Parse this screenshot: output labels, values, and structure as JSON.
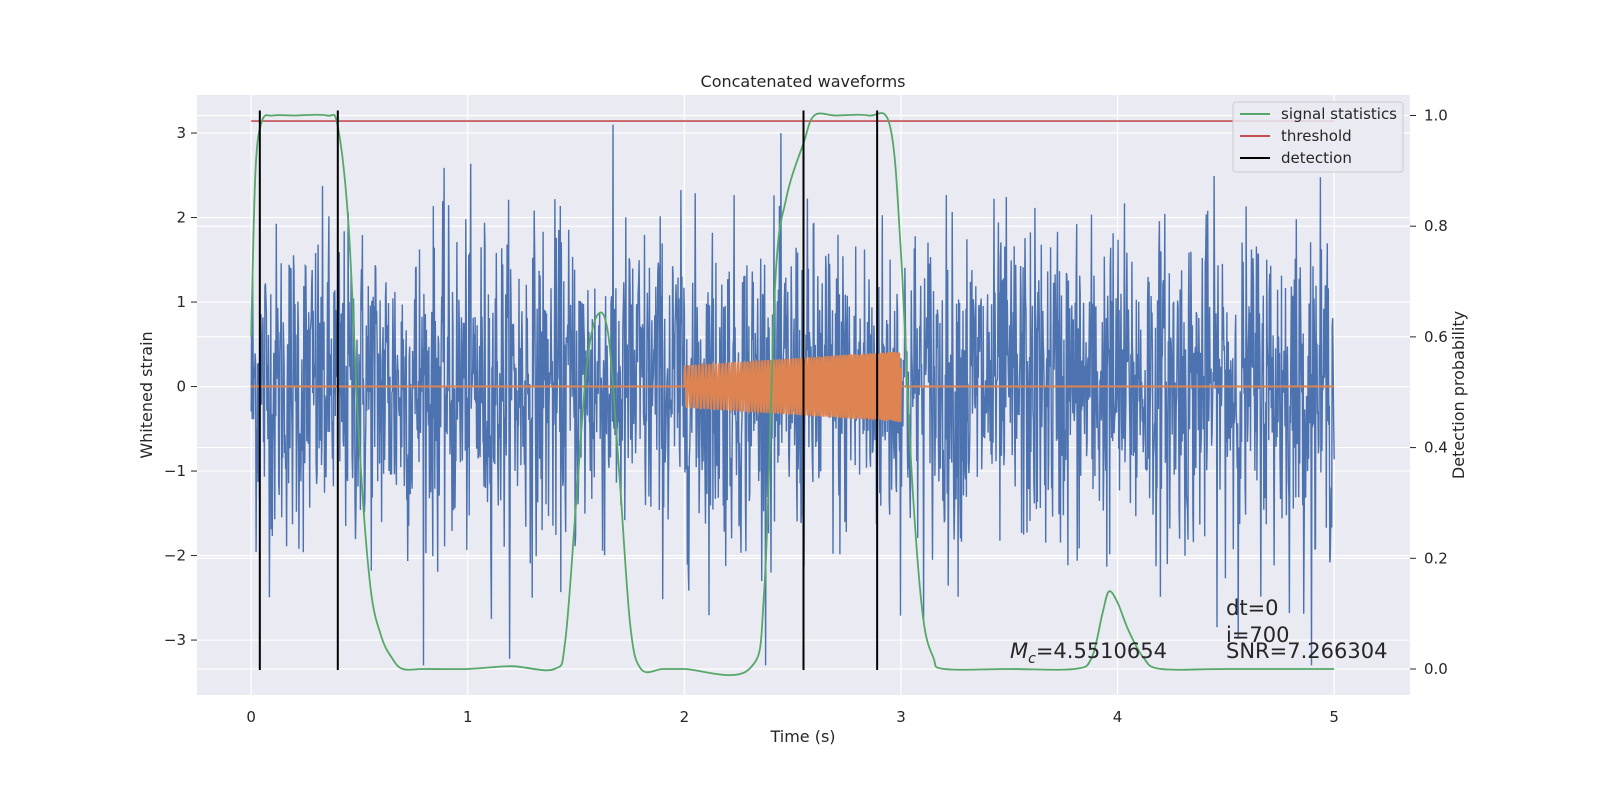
{
  "chart_data": {
    "type": "line",
    "title": "Concatenated waveforms",
    "xlabel": "Time (s)",
    "ylabel": "Whitened strain",
    "ylabel_right": "Detection probability",
    "xlim": [
      -0.25,
      5.35
    ],
    "ylim": [
      -3.65,
      3.45
    ],
    "ylim_right": [
      -0.047,
      1.037
    ],
    "x_ticks": [
      0,
      1,
      2,
      3,
      4,
      5
    ],
    "x_tick_labels": [
      "0",
      "1",
      "2",
      "3",
      "4",
      "5"
    ],
    "y_ticks": [
      -3,
      -2,
      -1,
      0,
      1,
      2,
      3
    ],
    "y_tick_labels": [
      "−3",
      "−2",
      "−1",
      "0",
      "1",
      "2",
      "3"
    ],
    "y_right_ticks": [
      0.0,
      0.2,
      0.4,
      0.6,
      0.8,
      1.0
    ],
    "y_right_tick_labels": [
      "0.0",
      "0.2",
      "0.4",
      "0.6",
      "0.8",
      "1.0"
    ],
    "grid": true,
    "legend_placement": "top-right",
    "legend": [
      {
        "label": "signal statistics",
        "color": "#55a868"
      },
      {
        "label": "threshold",
        "color": "#c44e52"
      },
      {
        "label": "detection",
        "color": "#000000"
      }
    ],
    "series": [
      {
        "kind": "noise",
        "color": "#4c72b0",
        "x_range": [
          0,
          5
        ],
        "approx_envelope": [
          -3.3,
          3.1
        ]
      },
      {
        "kind": "chirp",
        "color": "#dd8452",
        "x_range": [
          2,
          3
        ],
        "amplitude_start": 0.25,
        "amplitude_end": 0.42
      },
      {
        "name": "signal statistics",
        "axis": "right",
        "color": "#55a868",
        "x": [
          0,
          0.02,
          0.05,
          0.1,
          0.2,
          0.35,
          0.4,
          0.45,
          0.5,
          0.55,
          0.6,
          0.65,
          0.7,
          0.8,
          1.0,
          1.2,
          1.4,
          1.45,
          1.5,
          1.55,
          1.6,
          1.65,
          1.7,
          1.75,
          1.8,
          1.9,
          2.0,
          2.3,
          2.37,
          2.42,
          2.47,
          2.55,
          2.6,
          2.7,
          2.85,
          2.95,
          3.0,
          3.05,
          3.1,
          3.15,
          3.2,
          3.5,
          3.8,
          3.88,
          3.93,
          3.96,
          4.0,
          4.05,
          4.12,
          4.2,
          4.5,
          5.0
        ],
        "values": [
          0.6,
          0.9,
          0.99,
          1.0,
          1.0,
          1.0,
          0.98,
          0.8,
          0.4,
          0.15,
          0.06,
          0.02,
          0.0,
          0.0,
          0.0,
          0.005,
          0.0,
          0.05,
          0.3,
          0.55,
          0.64,
          0.6,
          0.35,
          0.08,
          0.0,
          0.0,
          0.0,
          0.0,
          0.15,
          0.7,
          0.85,
          0.95,
          1.0,
          1.0,
          1.0,
          0.98,
          0.75,
          0.35,
          0.1,
          0.02,
          0.0,
          0.0,
          0.0,
          0.02,
          0.1,
          0.14,
          0.12,
          0.07,
          0.02,
          0.0,
          0.0,
          0.0
        ]
      },
      {
        "name": "threshold",
        "axis": "right",
        "color": "#c44e52",
        "x": [
          0,
          5
        ],
        "values": [
          0.99,
          0.99
        ]
      }
    ],
    "detections": [
      0.04,
      0.4,
      2.55,
      2.89
    ],
    "annotations": {
      "mc": "=4.5510654",
      "dt": "dt=0",
      "i": "i=700",
      "snr": "SNR=7.266304"
    }
  }
}
